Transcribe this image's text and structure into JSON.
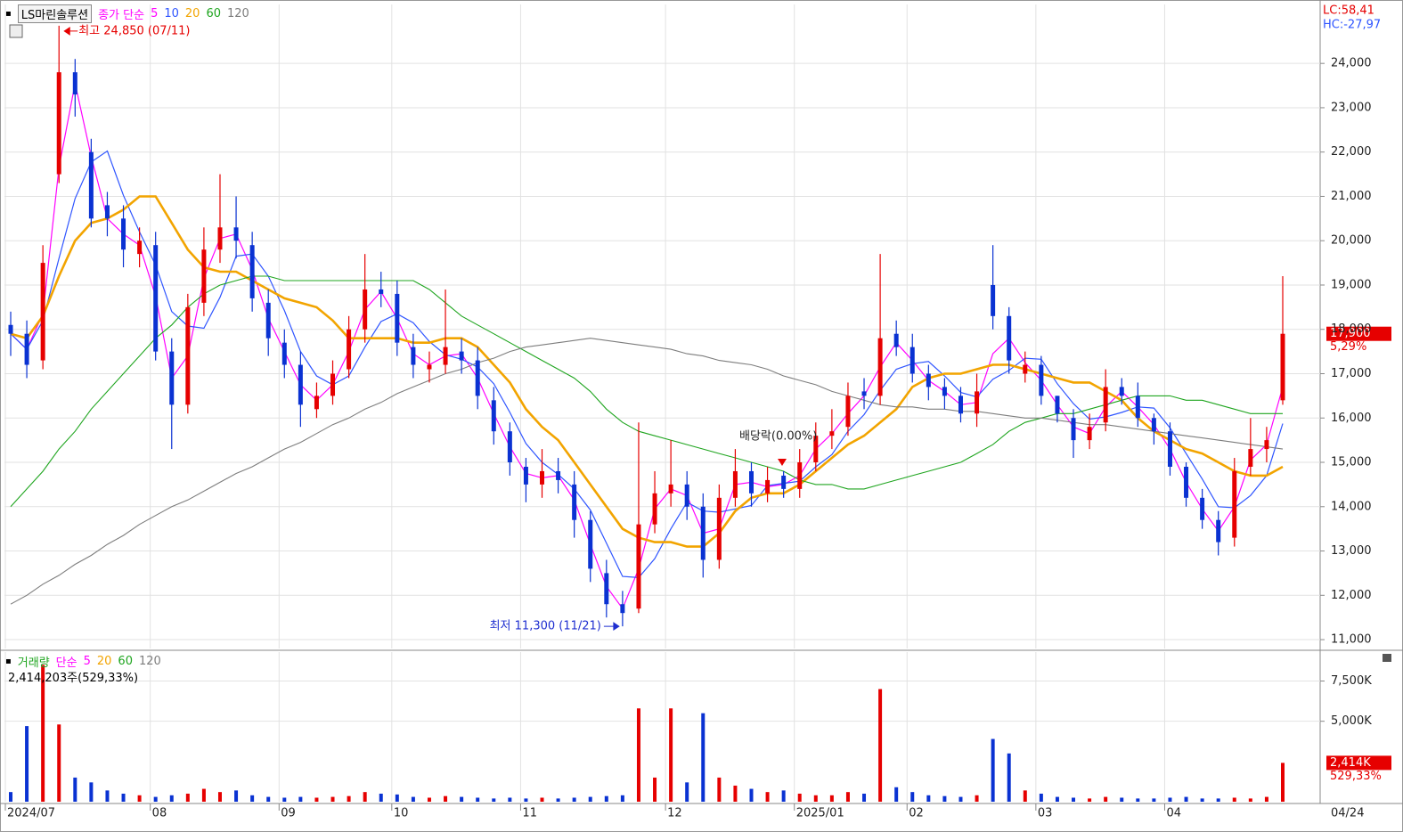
{
  "chart_data": {
    "type": "candlestick",
    "title": "LS마린솔루션",
    "price_legend_label": "종가 단순",
    "lc_label": "LC:58,41",
    "hc_label": "HC:-27,97",
    "high_label": "최고 24,850 (07/11)",
    "low_label": "최저 11,300 (11/21)",
    "dividend_label": "배당락(0.00%)",
    "last_price_label": "17,900",
    "last_change_label": "5,29%",
    "x_end_label": "04/24",
    "up_color": "#e60000",
    "down_color": "#0a32d2",
    "grid": true,
    "categories": [
      "2024/07",
      null,
      null,
      null,
      null,
      null,
      null,
      null,
      null,
      "08",
      null,
      null,
      null,
      null,
      null,
      null,
      null,
      "09",
      null,
      null,
      null,
      null,
      null,
      null,
      "10",
      null,
      null,
      null,
      null,
      null,
      null,
      null,
      "11",
      null,
      null,
      null,
      null,
      null,
      null,
      null,
      null,
      "12",
      null,
      null,
      null,
      null,
      null,
      null,
      null,
      "2025/01",
      null,
      null,
      null,
      null,
      null,
      null,
      "02",
      null,
      null,
      null,
      null,
      null,
      null,
      null,
      "03",
      null,
      null,
      null,
      null,
      null,
      null,
      null,
      "04",
      null,
      null,
      null,
      null,
      null,
      null,
      null
    ],
    "candles": {
      "open": [
        18100,
        17900,
        17300,
        21500,
        23800,
        22000,
        20800,
        20500,
        19700,
        19900,
        17500,
        16300,
        18600,
        19800,
        20300,
        19900,
        18600,
        17700,
        17200,
        16200,
        16500,
        17100,
        18000,
        18900,
        18800,
        17600,
        17100,
        17200,
        17500,
        17300,
        16400,
        15700,
        14900,
        14500,
        14800,
        14500,
        13700,
        12500,
        11800,
        11700,
        13600,
        14300,
        14500,
        14000,
        12800,
        14200,
        14800,
        14300,
        14700,
        14400,
        15000,
        15600,
        15800,
        16600,
        16500,
        17900,
        17600,
        17000,
        16700,
        16500,
        16100,
        19000,
        18300,
        17000,
        17200,
        16500,
        16000,
        15500,
        15900,
        16700,
        16500,
        16000,
        15700,
        14900,
        14200,
        13700,
        13300,
        14900,
        15300,
        16400
      ],
      "high": [
        18400,
        18200,
        19900,
        24850,
        24100,
        22300,
        21100,
        20800,
        20300,
        20200,
        17800,
        18800,
        20300,
        21500,
        21000,
        20200,
        18900,
        18000,
        17500,
        16800,
        17300,
        18300,
        19700,
        19300,
        19100,
        17900,
        17500,
        18900,
        17800,
        17600,
        16700,
        15900,
        15100,
        15300,
        15100,
        14800,
        13900,
        12800,
        12100,
        15900,
        14800,
        15500,
        14800,
        14300,
        14500,
        15300,
        15000,
        14900,
        14800,
        15300,
        15900,
        16200,
        16800,
        16900,
        19700,
        18200,
        17900,
        17200,
        16900,
        16700,
        17000,
        19900,
        18500,
        17500,
        17400,
        16500,
        16200,
        16100,
        17100,
        16900,
        16800,
        16100,
        15900,
        15000,
        14400,
        13900,
        15100,
        16000,
        15800,
        19200
      ],
      "low": [
        17400,
        16900,
        17100,
        21300,
        22800,
        20300,
        20100,
        19400,
        19400,
        17300,
        15300,
        16100,
        18300,
        19500,
        19600,
        18400,
        17400,
        16900,
        15800,
        16000,
        16300,
        16900,
        17700,
        18500,
        17400,
        16900,
        16800,
        17000,
        17000,
        16200,
        15400,
        14700,
        14100,
        14200,
        14300,
        13300,
        12300,
        11500,
        11300,
        11600,
        13400,
        14000,
        13700,
        12400,
        12600,
        14000,
        14000,
        14100,
        14200,
        14200,
        14800,
        15300,
        15600,
        16200,
        16300,
        17400,
        16800,
        16400,
        16200,
        15900,
        15800,
        18000,
        17000,
        16800,
        16300,
        15900,
        15100,
        15300,
        15700,
        16300,
        15800,
        15400,
        14700,
        14000,
        13500,
        12900,
        13100,
        14700,
        15000,
        16300
      ],
      "close": [
        17900,
        17200,
        19500,
        23800,
        23300,
        20500,
        20500,
        19800,
        20000,
        17500,
        16300,
        18500,
        19800,
        20300,
        20000,
        18700,
        17800,
        17200,
        16300,
        16500,
        17000,
        18000,
        18900,
        18800,
        17700,
        17200,
        17200,
        17600,
        17300,
        16500,
        15700,
        15000,
        14500,
        14800,
        14600,
        13700,
        12600,
        11800,
        11600,
        13600,
        14300,
        14500,
        14000,
        12800,
        14200,
        14800,
        14300,
        14600,
        14400,
        15000,
        15600,
        15700,
        16500,
        16500,
        17800,
        17600,
        17000,
        16700,
        16500,
        16100,
        16600,
        18300,
        17300,
        17200,
        16500,
        16100,
        15500,
        15800,
        16700,
        16500,
        16000,
        15700,
        14900,
        14200,
        13700,
        13200,
        14800,
        15300,
        15500,
        17900
      ]
    },
    "series": [
      {
        "name": "5",
        "color": "#ff00ff",
        "width": 1.2,
        "values": [
          17900,
          17550,
          18350,
          21650,
          23550,
          21900,
          20500,
          20150,
          19900,
          18750,
          16900,
          17400,
          19150,
          20050,
          20150,
          19350,
          18250,
          17500,
          16750,
          16400,
          16750,
          17500,
          18450,
          18850,
          18250,
          17450,
          17200,
          17400,
          17450,
          16900,
          16100,
          15350,
          14750,
          14650,
          14700,
          14150,
          13150,
          12200,
          11700,
          12600,
          13950,
          14400,
          14250,
          13400,
          13500,
          14500,
          14550,
          14450,
          14500,
          14700,
          15300,
          15650,
          16100,
          16500,
          17150,
          17700,
          17300,
          16850,
          16600,
          16300,
          16350,
          17450,
          17800,
          17250,
          16850,
          16300,
          15800,
          15650,
          16250,
          16600,
          16250,
          15850,
          15300,
          14550,
          13950,
          13450,
          14000,
          15050,
          15400,
          16700
        ]
      },
      {
        "name": "10",
        "color": "#2f55ff",
        "width": 1.2,
        "values": [
          17900,
          17550,
          18200,
          19600,
          20950,
          21775,
          22025,
          21025,
          20200,
          19450,
          18400,
          18075,
          18025,
          18725,
          19650,
          19700,
          19200,
          18425,
          17500,
          16950,
          16750,
          16950,
          17600,
          18175,
          18350,
          18150,
          17725,
          17425,
          17325,
          17150,
          16775,
          16125,
          15425,
          15000,
          14725,
          14400,
          13925,
          13175,
          12425,
          12400,
          12825,
          13500,
          14100,
          13900,
          13875,
          13950,
          14025,
          14475,
          14525,
          14575,
          14900,
          15175,
          15700,
          16075,
          16625,
          17100,
          17225,
          17275,
          16950,
          16575,
          16475,
          16875,
          17075,
          17350,
          17325,
          16775,
          16325,
          15975,
          16025,
          16125,
          16250,
          16225,
          15775,
          15200,
          14625,
          14000,
          13975,
          14250,
          14700,
          15875
        ]
      },
      {
        "name": "20",
        "color": "#f2a400",
        "width": 2.6,
        "values": [
          17900,
          17800,
          18300,
          19200,
          20000,
          20400,
          20500,
          20700,
          21000,
          21000,
          20400,
          19800,
          19400,
          19300,
          19300,
          19100,
          18900,
          18700,
          18600,
          18500,
          18200,
          17800,
          17800,
          17800,
          17800,
          17700,
          17700,
          17800,
          17800,
          17600,
          17200,
          16800,
          16200,
          15800,
          15500,
          15000,
          14500,
          14000,
          13500,
          13300,
          13200,
          13200,
          13100,
          13100,
          13400,
          13900,
          14200,
          14300,
          14300,
          14500,
          14800,
          15100,
          15400,
          15600,
          15900,
          16200,
          16700,
          16900,
          17000,
          17000,
          17100,
          17200,
          17200,
          17100,
          17000,
          16900,
          16800,
          16800,
          16600,
          16400,
          16000,
          15700,
          15500,
          15300,
          15200,
          15000,
          14800,
          14700,
          14700,
          14900
        ]
      },
      {
        "name": "60",
        "color": "#1fa51f",
        "width": 1.1,
        "values": [
          14000,
          14400,
          14800,
          15300,
          15700,
          16200,
          16600,
          17000,
          17400,
          17800,
          18100,
          18500,
          18800,
          19000,
          19100,
          19200,
          19200,
          19100,
          19100,
          19100,
          19100,
          19100,
          19100,
          19100,
          19100,
          19100,
          18900,
          18600,
          18300,
          18100,
          17900,
          17700,
          17500,
          17300,
          17100,
          16900,
          16600,
          16200,
          15900,
          15700,
          15600,
          15500,
          15400,
          15300,
          15200,
          15100,
          15000,
          14900,
          14800,
          14600,
          14500,
          14500,
          14400,
          14400,
          14500,
          14600,
          14700,
          14800,
          14900,
          15000,
          15200,
          15400,
          15700,
          15900,
          16000,
          16100,
          16100,
          16200,
          16300,
          16400,
          16500,
          16500,
          16500,
          16400,
          16400,
          16300,
          16200,
          16100,
          16100,
          16100
        ]
      },
      {
        "name": "120",
        "color": "#7d7d7d",
        "width": 1.1,
        "values": [
          11800,
          12000,
          12250,
          12450,
          12700,
          12900,
          13150,
          13350,
          13600,
          13800,
          14000,
          14150,
          14350,
          14550,
          14750,
          14900,
          15100,
          15300,
          15450,
          15650,
          15850,
          16000,
          16200,
          16350,
          16550,
          16700,
          16850,
          17000,
          17100,
          17250,
          17350,
          17500,
          17600,
          17650,
          17700,
          17750,
          17800,
          17750,
          17700,
          17650,
          17600,
          17550,
          17450,
          17400,
          17300,
          17250,
          17200,
          17100,
          16950,
          16850,
          16750,
          16600,
          16500,
          16400,
          16300,
          16250,
          16250,
          16200,
          16200,
          16150,
          16150,
          16100,
          16050,
          16000,
          16000,
          15950,
          15900,
          15850,
          15850,
          15800,
          15750,
          15700,
          15650,
          15600,
          15550,
          15500,
          15450,
          15400,
          15350,
          15300
        ]
      }
    ],
    "ylim": [
      10800,
      25330
    ],
    "yticks": [
      {
        "value": 11000,
        "label": "11,000"
      },
      {
        "value": 12000,
        "label": "12,000"
      },
      {
        "value": 13000,
        "label": "13,000"
      },
      {
        "value": 14000,
        "label": "14,000"
      },
      {
        "value": 15000,
        "label": "15,000"
      },
      {
        "value": 16000,
        "label": "16,000"
      },
      {
        "value": 17000,
        "label": "17,000"
      },
      {
        "value": 18000,
        "label": "18,000"
      },
      {
        "value": 19000,
        "label": "19,000"
      },
      {
        "value": 20000,
        "label": "20,000"
      },
      {
        "value": 21000,
        "label": "21,000"
      },
      {
        "value": 22000,
        "label": "22,000"
      },
      {
        "value": 23000,
        "label": "23,000"
      },
      {
        "value": 24000,
        "label": "24,000"
      }
    ],
    "volume": {
      "title": "거래량",
      "label": "단순",
      "ma_legend": [
        {
          "name": "5",
          "color": "#ff00ff"
        },
        {
          "name": "20",
          "color": "#f2a400"
        },
        {
          "name": "60",
          "color": "#1fa51f"
        },
        {
          "name": "120",
          "color": "#7d7d7d"
        }
      ],
      "info": "2,414,203주(529,33%)",
      "last_label": "2,414K",
      "last_change_label": "529,33%",
      "values": [
        600,
        4700,
        8500,
        4800,
        1500,
        1200,
        700,
        500,
        400,
        300,
        400,
        500,
        800,
        600,
        700,
        400,
        300,
        250,
        300,
        250,
        300,
        350,
        600,
        500,
        450,
        300,
        250,
        350,
        300,
        250,
        200,
        250,
        200,
        250,
        200,
        250,
        300,
        350,
        400,
        5800,
        1500,
        5800,
        1200,
        5500,
        1500,
        1000,
        800,
        600,
        700,
        500,
        400,
        400,
        600,
        500,
        7000,
        900,
        600,
        400,
        350,
        300,
        400,
        3900,
        3000,
        700,
        500,
        300,
        250,
        200,
        300,
        250,
        200,
        200,
        250,
        300,
        200,
        200,
        250,
        200,
        300,
        2414
      ],
      "ylim": [
        0,
        9300
      ],
      "yticks": [
        {
          "value": 5000,
          "label": "5,000K"
        },
        {
          "value": 7500,
          "label": "7,500K"
        }
      ]
    }
  }
}
